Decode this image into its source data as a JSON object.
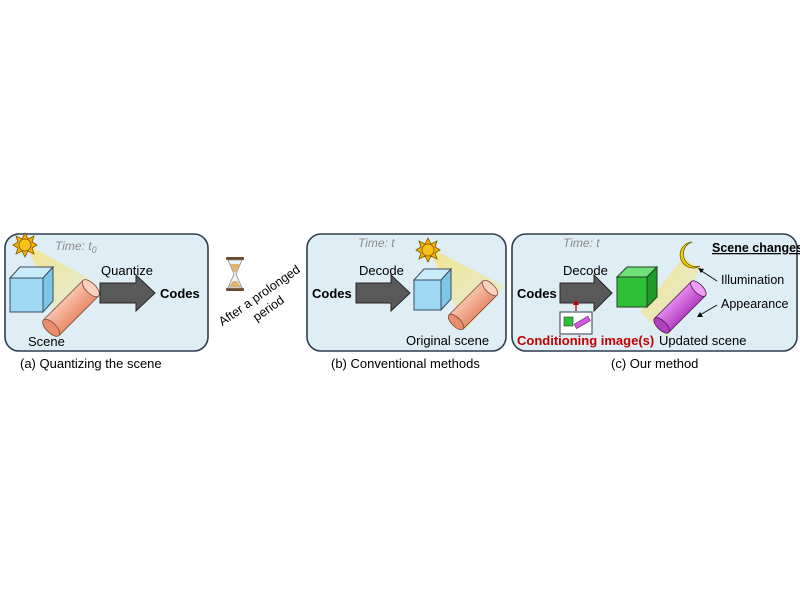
{
  "panel_a": {
    "time_prefix": "Time:",
    "time_var": "t",
    "time_sub": "0",
    "action_label": "Quantize",
    "output_label": "Codes",
    "object_label": "Scene",
    "caption": "(a) Quantizing the scene"
  },
  "transition": {
    "line1": "After a prolonged",
    "line2": "period"
  },
  "panel_b": {
    "time_prefix": "Time:",
    "time_var": "t",
    "input_label": "Codes",
    "action_label": "Decode",
    "object_label": "Original scene",
    "caption": "(b) Conventional methods"
  },
  "panel_c": {
    "time_prefix": "Time:",
    "time_var": "t",
    "input_label": "Codes",
    "action_label": "Decode",
    "changes_title": "Scene changes",
    "change_1": "Illumination",
    "change_2": "Appearance",
    "conditioning_label": "Conditioning image(s)",
    "object_label": "Updated scene",
    "caption": "(c) Our method"
  },
  "colors": {
    "panel_fill": "#deeef4",
    "panel_border": "#2d3d52",
    "arrow_fill": "#595959",
    "cube_blue": "#9fd8f2",
    "cube_green": "#2fc03a",
    "cylinder_orange": "#f4a98a",
    "cylinder_magenta": "#d45ae0",
    "sun": "#f6b400",
    "moon": "#f6d000",
    "conditioning_text": "#c00000"
  }
}
